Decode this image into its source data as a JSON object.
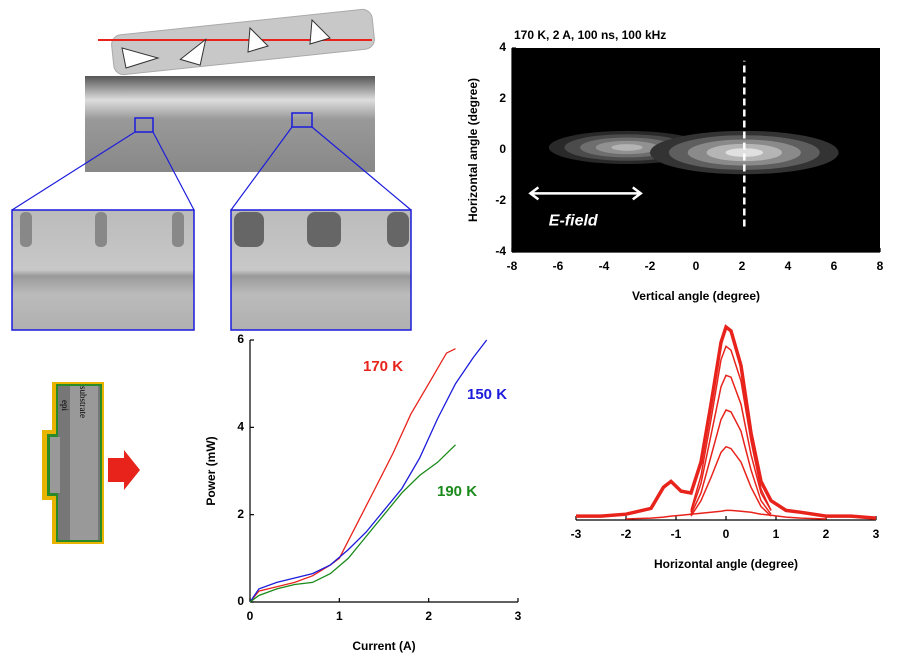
{
  "chart_data": [
    {
      "type": "heatmap",
      "title": "170 K, 2 A, 100 ns, 100 kHz",
      "x_label": "Vertical angle (degree)",
      "y_label": "Horizontal angle (degree)",
      "xlim": [
        -8,
        8
      ],
      "ylim": [
        -4,
        4
      ],
      "xticks": [
        -8,
        -6,
        -4,
        -2,
        0,
        2,
        4,
        6,
        8
      ],
      "yticks": [
        -4,
        -2,
        0,
        2,
        4
      ],
      "spots": [
        {
          "x": -3,
          "y": 0.1,
          "width": 6.8,
          "height": 1.3,
          "peak": 0.8
        },
        {
          "x": 2.1,
          "y": -0.1,
          "width": 8.2,
          "height": 1.7,
          "peak": 1
        }
      ],
      "vline": 2.1,
      "annotation": "E-field"
    },
    {
      "type": "line",
      "x_label": "Current (A)",
      "y_label": "Power (mW)",
      "xlim": [
        0,
        3
      ],
      "ylim": [
        0,
        6
      ],
      "xticks": [
        0,
        1,
        2,
        3
      ],
      "yticks": [
        0,
        2,
        4,
        6
      ],
      "series": [
        {
          "name": "170 K",
          "color": "#e8231c",
          "x": [
            0,
            0.1,
            0.3,
            0.5,
            0.7,
            0.9,
            1.0,
            1.2,
            1.4,
            1.6,
            1.8,
            2.0,
            2.2,
            2.3
          ],
          "values": [
            0,
            0.25,
            0.35,
            0.45,
            0.6,
            0.85,
            1.0,
            1.8,
            2.6,
            3.4,
            4.3,
            5.0,
            5.7,
            5.8
          ]
        },
        {
          "name": "150 K",
          "color": "#1c1cdc",
          "x": [
            0,
            0.1,
            0.3,
            0.5,
            0.7,
            0.9,
            1.1,
            1.3,
            1.5,
            1.7,
            1.9,
            2.1,
            2.3,
            2.5,
            2.65
          ],
          "values": [
            0,
            0.3,
            0.45,
            0.55,
            0.65,
            0.85,
            1.2,
            1.6,
            2.1,
            2.6,
            3.3,
            4.2,
            5.0,
            5.6,
            6.0
          ]
        },
        {
          "name": "190 K",
          "color": "#1a8a1a",
          "x": [
            0,
            0.1,
            0.3,
            0.5,
            0.7,
            0.9,
            1.1,
            1.3,
            1.5,
            1.7,
            1.9,
            2.1,
            2.3
          ],
          "values": [
            0,
            0.15,
            0.3,
            0.4,
            0.45,
            0.65,
            1.0,
            1.5,
            2.0,
            2.5,
            2.9,
            3.2,
            3.6
          ]
        }
      ]
    },
    {
      "type": "line",
      "x_label": "Horizontal angle (degree)",
      "xlim": [
        -3,
        3
      ],
      "ylim": [
        0,
        1
      ],
      "xticks": [
        -3,
        -2,
        -1,
        0,
        1,
        2,
        3
      ],
      "x": [
        -3,
        -2.5,
        -2,
        -1.5,
        -1.25,
        -1.1,
        -0.9,
        -0.7,
        -0.5,
        -0.3,
        -0.1,
        0,
        0.1,
        0.3,
        0.5,
        0.7,
        0.9,
        1.2,
        1.5,
        2,
        2.5,
        3
      ],
      "series": [
        {
          "color": "#e8231c",
          "values": [
            0.02,
            0.02,
            0.03,
            0.06,
            0.17,
            0.2,
            0.15,
            0.14,
            0.3,
            0.6,
            0.92,
            1.0,
            0.98,
            0.8,
            0.45,
            0.2,
            0.1,
            0.05,
            0.04,
            0.02,
            0.02,
            0.01
          ]
        },
        {
          "color": "#e8231c",
          "values": [
            null,
            null,
            null,
            null,
            null,
            null,
            null,
            0.05,
            0.23,
            0.52,
            0.83,
            0.9,
            0.88,
            0.72,
            0.41,
            0.16,
            0.05,
            null,
            null,
            null,
            null,
            null
          ]
        },
        {
          "color": "#e8231c",
          "values": [
            null,
            null,
            null,
            null,
            null,
            null,
            null,
            0.04,
            0.19,
            0.44,
            0.69,
            0.75,
            0.74,
            0.6,
            0.34,
            0.14,
            0.05,
            null,
            null,
            null,
            null,
            null
          ]
        },
        {
          "color": "#e8231c",
          "values": [
            null,
            null,
            null,
            null,
            null,
            null,
            null,
            0.03,
            0.14,
            0.33,
            0.52,
            0.57,
            0.56,
            0.46,
            0.26,
            0.1,
            0.03,
            null,
            null,
            null,
            null,
            null
          ]
        },
        {
          "color": "#e8231c",
          "values": [
            null,
            null,
            null,
            null,
            null,
            null,
            null,
            0.02,
            0.1,
            0.22,
            0.35,
            0.38,
            0.37,
            0.3,
            0.17,
            0.07,
            0.02,
            null,
            null,
            null,
            null,
            null
          ]
        },
        {
          "color": "#e8231c",
          "values": [
            null,
            null,
            0.005,
            0.01,
            0.015,
            0.02,
            0.025,
            0.03,
            0.035,
            0.04,
            0.045,
            0.05,
            0.05,
            0.045,
            0.04,
            0.03,
            0.025,
            0.015,
            0.01,
            0.005,
            null,
            null
          ]
        }
      ]
    }
  ],
  "diagram": {
    "labels": [
      "epi",
      "substrate"
    ]
  }
}
